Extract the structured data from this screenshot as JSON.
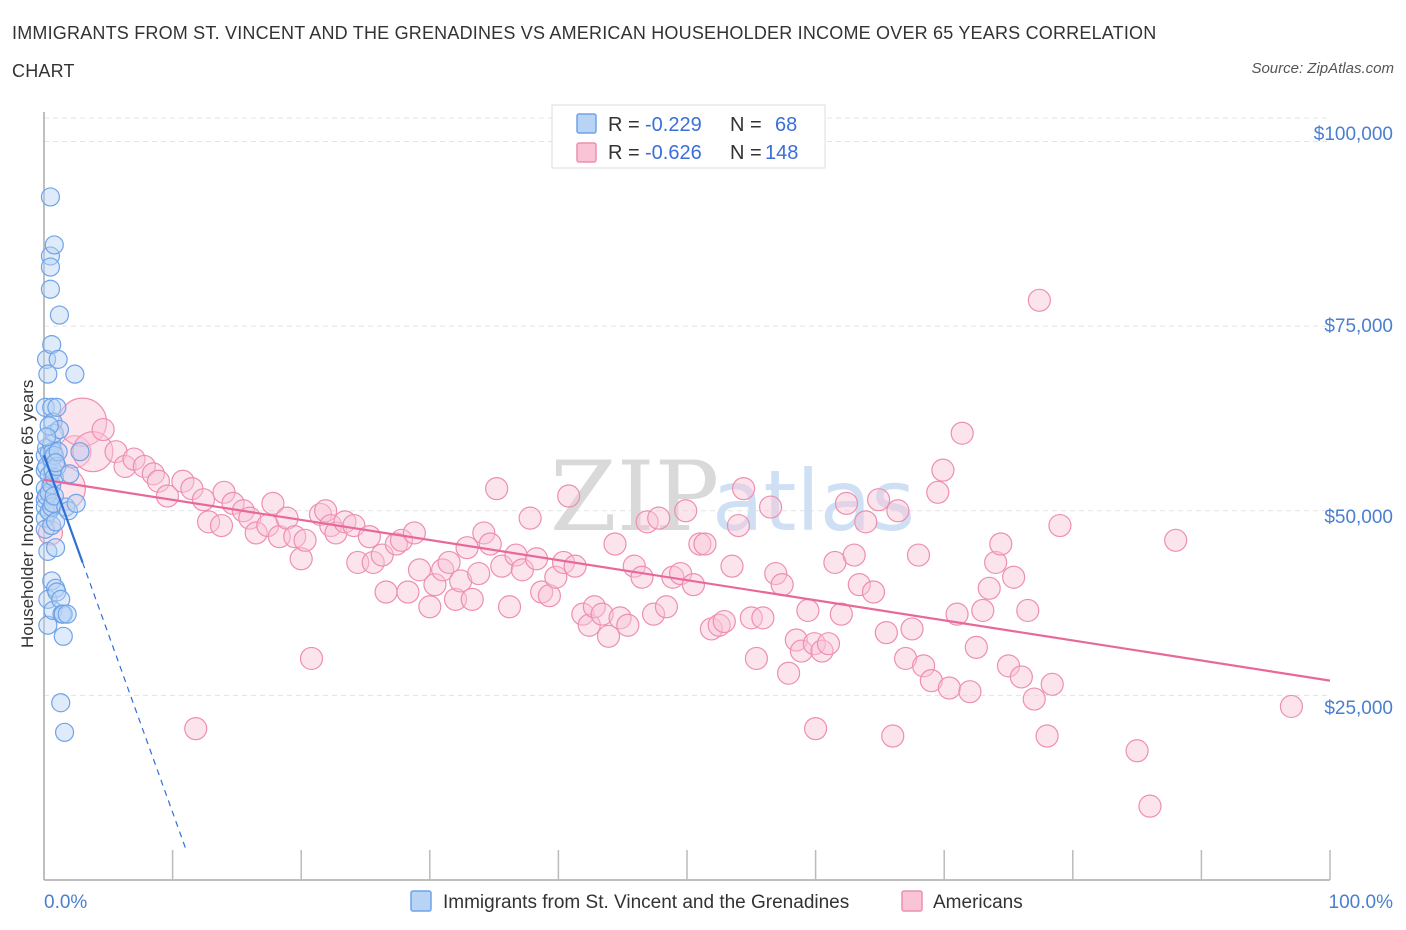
{
  "header": {
    "title": "IMMIGRANTS FROM ST. VINCENT AND THE GRENADINES VS AMERICAN HOUSEHOLDER INCOME OVER 65 YEARS CORRELATION CHART",
    "source": "Source: ZipAtlas.com"
  },
  "watermark": {
    "zip": "ZIP",
    "atlas": "atlas"
  },
  "legend": {
    "blue": {
      "r_label": "R =",
      "r_value": "-0.229",
      "n_label": "N =",
      "n_value": "68"
    },
    "pink": {
      "r_label": "R =",
      "r_value": "-0.626",
      "n_label": "N =",
      "n_value": "148"
    }
  },
  "bottom_legend": {
    "blue_label": "Immigrants from St. Vincent and the Grenadines",
    "pink_label": "Americans"
  },
  "colors": {
    "blue": "#6fa3e8",
    "blue_fill": "#b9d3f5",
    "blue_line": "#2f6fd6",
    "pink": "#ee8fb0",
    "pink_fill": "#f8c4d6",
    "pink_line": "#e8689a",
    "tick": "#4a7fcf",
    "grid": "#e3e3e3"
  },
  "chart_data": {
    "type": "scatter",
    "title": "IMMIGRANTS FROM ST. VINCENT AND THE GRENADINES VS AMERICAN HOUSEHOLDER INCOME OVER 65 YEARS CORRELATION CHART",
    "xlabel": "",
    "ylabel": "Householder Income Over 65 years",
    "xlim": [
      0,
      100
    ],
    "ylim": [
      0,
      104000
    ],
    "x_tick_labels": [
      "0.0%",
      "100.0%"
    ],
    "y_ticks": [
      25000,
      50000,
      75000,
      100000
    ],
    "y_tick_labels": [
      "$25,000",
      "$50,000",
      "$75,000",
      "$100,000"
    ],
    "grid": true,
    "series": [
      {
        "name": "Immigrants from St. Vincent and the Grenadines",
        "R": -0.229,
        "N": 68,
        "trend": {
          "x0": 0,
          "y0": 57500,
          "x1": 3,
          "y1": 43000,
          "dashed_to_x": 11
        },
        "points": [
          [
            0.1,
            64000
          ],
          [
            0.1,
            57500
          ],
          [
            0.1,
            55500
          ],
          [
            0.1,
            53000
          ],
          [
            0.1,
            51500
          ],
          [
            0.1,
            50500
          ],
          [
            0.1,
            49000
          ],
          [
            0.1,
            47500
          ],
          [
            0.2,
            70500
          ],
          [
            0.2,
            58500
          ],
          [
            0.2,
            56000
          ],
          [
            0.2,
            52000
          ],
          [
            0.3,
            34500
          ],
          [
            0.3,
            38000
          ],
          [
            0.3,
            44500
          ],
          [
            0.3,
            68500
          ],
          [
            0.4,
            57800
          ],
          [
            0.4,
            54800
          ],
          [
            0.4,
            52400
          ],
          [
            0.4,
            49900
          ],
          [
            0.5,
            92500
          ],
          [
            0.5,
            84500
          ],
          [
            0.5,
            83000
          ],
          [
            0.5,
            80000
          ],
          [
            0.6,
            72500
          ],
          [
            0.6,
            64000
          ],
          [
            0.6,
            59000
          ],
          [
            0.6,
            57000
          ],
          [
            0.6,
            53500
          ],
          [
            0.6,
            50500
          ],
          [
            0.6,
            48000
          ],
          [
            0.6,
            40500
          ],
          [
            0.7,
            62000
          ],
          [
            0.7,
            58000
          ],
          [
            0.7,
            55500
          ],
          [
            0.7,
            51000
          ],
          [
            0.7,
            36500
          ],
          [
            0.8,
            86000
          ],
          [
            0.8,
            60500
          ],
          [
            0.8,
            57500
          ],
          [
            0.8,
            54500
          ],
          [
            0.8,
            52000
          ],
          [
            0.9,
            48500
          ],
          [
            0.9,
            45000
          ],
          [
            0.9,
            39500
          ],
          [
            1.0,
            64000
          ],
          [
            1.0,
            56000
          ],
          [
            1.0,
            39000
          ],
          [
            1.1,
            70500
          ],
          [
            1.1,
            58000
          ],
          [
            1.2,
            76500
          ],
          [
            1.2,
            61000
          ],
          [
            1.3,
            24000
          ],
          [
            1.3,
            38000
          ],
          [
            1.4,
            36000
          ],
          [
            1.5,
            36000
          ],
          [
            1.5,
            33000
          ],
          [
            1.6,
            20000
          ],
          [
            1.7,
            50500
          ],
          [
            1.8,
            36000
          ],
          [
            1.9,
            50000
          ],
          [
            2.0,
            55000
          ],
          [
            2.4,
            68500
          ],
          [
            2.5,
            51000
          ],
          [
            2.8,
            58000
          ],
          [
            0.4,
            61500
          ],
          [
            0.9,
            56500
          ],
          [
            0.2,
            60000
          ]
        ]
      },
      {
        "name": "Americans",
        "R": -0.626,
        "N": 148,
        "trend": {
          "x0": 0,
          "y0": 54200,
          "x1": 100,
          "y1": 27000
        },
        "points": [
          [
            0.5,
            47000
          ],
          [
            1.5,
            53000
          ],
          [
            2.4,
            58000
          ],
          [
            3.0,
            62000
          ],
          [
            3.8,
            58000
          ],
          [
            4.6,
            61000
          ],
          [
            5.6,
            58000
          ],
          [
            6.3,
            56000
          ],
          [
            7.0,
            57000
          ],
          [
            7.8,
            56000
          ],
          [
            8.5,
            55000
          ],
          [
            8.9,
            54000
          ],
          [
            9.6,
            52000
          ],
          [
            10.8,
            54000
          ],
          [
            11.5,
            53000
          ],
          [
            12.4,
            51500
          ],
          [
            12.8,
            48500
          ],
          [
            13.8,
            48000
          ],
          [
            14.0,
            52500
          ],
          [
            14.7,
            51000
          ],
          [
            15.5,
            50000
          ],
          [
            16.0,
            49000
          ],
          [
            16.5,
            47000
          ],
          [
            17.4,
            48000
          ],
          [
            17.8,
            51000
          ],
          [
            18.3,
            46500
          ],
          [
            18.9,
            49000
          ],
          [
            19.5,
            46500
          ],
          [
            20.0,
            43500
          ],
          [
            20.3,
            46000
          ],
          [
            21.5,
            49500
          ],
          [
            21.9,
            50000
          ],
          [
            22.3,
            48000
          ],
          [
            22.7,
            47000
          ],
          [
            23.4,
            48500
          ],
          [
            24.1,
            48000
          ],
          [
            24.4,
            43000
          ],
          [
            25.3,
            46500
          ],
          [
            25.6,
            43000
          ],
          [
            26.3,
            44000
          ],
          [
            26.6,
            39000
          ],
          [
            27.4,
            45500
          ],
          [
            27.8,
            46000
          ],
          [
            28.3,
            39000
          ],
          [
            28.8,
            47000
          ],
          [
            29.2,
            42000
          ],
          [
            30.0,
            37000
          ],
          [
            30.4,
            40000
          ],
          [
            31.0,
            42000
          ],
          [
            31.5,
            43000
          ],
          [
            32.0,
            38000
          ],
          [
            32.4,
            40500
          ],
          [
            32.9,
            45000
          ],
          [
            33.3,
            38000
          ],
          [
            33.8,
            41500
          ],
          [
            34.2,
            47000
          ],
          [
            34.7,
            45500
          ],
          [
            35.2,
            53000
          ],
          [
            35.6,
            42500
          ],
          [
            36.2,
            37000
          ],
          [
            36.7,
            44000
          ],
          [
            37.2,
            42000
          ],
          [
            37.8,
            49000
          ],
          [
            38.3,
            43500
          ],
          [
            38.7,
            39000
          ],
          [
            39.3,
            38500
          ],
          [
            39.8,
            41000
          ],
          [
            40.4,
            43000
          ],
          [
            40.8,
            52000
          ],
          [
            41.3,
            42500
          ],
          [
            41.9,
            36000
          ],
          [
            42.4,
            34500
          ],
          [
            42.8,
            37000
          ],
          [
            43.4,
            36000
          ],
          [
            43.9,
            33000
          ],
          [
            44.4,
            45500
          ],
          [
            44.8,
            35500
          ],
          [
            45.4,
            34500
          ],
          [
            45.9,
            42500
          ],
          [
            46.5,
            41000
          ],
          [
            46.9,
            48500
          ],
          [
            47.4,
            36000
          ],
          [
            47.8,
            49000
          ],
          [
            48.4,
            37000
          ],
          [
            48.9,
            41000
          ],
          [
            49.5,
            41500
          ],
          [
            49.9,
            50000
          ],
          [
            50.5,
            40000
          ],
          [
            51.0,
            45500
          ],
          [
            51.4,
            45500
          ],
          [
            51.9,
            34000
          ],
          [
            52.5,
            34500
          ],
          [
            52.9,
            35000
          ],
          [
            53.5,
            42500
          ],
          [
            54.0,
            48000
          ],
          [
            54.4,
            53000
          ],
          [
            55.0,
            35500
          ],
          [
            55.4,
            30000
          ],
          [
            55.9,
            35500
          ],
          [
            56.5,
            50500
          ],
          [
            56.9,
            41500
          ],
          [
            57.4,
            40000
          ],
          [
            57.9,
            28000
          ],
          [
            58.5,
            32500
          ],
          [
            58.9,
            31000
          ],
          [
            59.4,
            36500
          ],
          [
            59.9,
            32000
          ],
          [
            60.5,
            31000
          ],
          [
            61.0,
            32000
          ],
          [
            61.5,
            43000
          ],
          [
            62.0,
            36000
          ],
          [
            62.4,
            51000
          ],
          [
            63.0,
            44000
          ],
          [
            63.4,
            40000
          ],
          [
            63.9,
            48500
          ],
          [
            64.5,
            39000
          ],
          [
            64.9,
            51500
          ],
          [
            65.5,
            33500
          ],
          [
            66.0,
            19500
          ],
          [
            66.4,
            50000
          ],
          [
            67.0,
            30000
          ],
          [
            67.5,
            34000
          ],
          [
            68.0,
            44000
          ],
          [
            68.4,
            29000
          ],
          [
            69.0,
            27000
          ],
          [
            69.5,
            52500
          ],
          [
            69.9,
            55500
          ],
          [
            70.4,
            26000
          ],
          [
            71.0,
            36000
          ],
          [
            71.4,
            60500
          ],
          [
            72.0,
            25500
          ],
          [
            72.5,
            31500
          ],
          [
            73.0,
            36500
          ],
          [
            73.5,
            39500
          ],
          [
            74.0,
            43000
          ],
          [
            74.4,
            45500
          ],
          [
            75.0,
            29000
          ],
          [
            75.4,
            41000
          ],
          [
            76.0,
            27500
          ],
          [
            76.5,
            36500
          ],
          [
            77.0,
            24500
          ],
          [
            77.4,
            78500
          ],
          [
            78.0,
            19500
          ],
          [
            78.4,
            26500
          ],
          [
            79.0,
            48000
          ],
          [
            86.0,
            10000
          ],
          [
            85.0,
            17500
          ],
          [
            88.0,
            46000
          ],
          [
            97.0,
            23500
          ],
          [
            11.8,
            20500
          ],
          [
            20.8,
            30000
          ],
          [
            60.0,
            20500
          ]
        ]
      }
    ]
  }
}
